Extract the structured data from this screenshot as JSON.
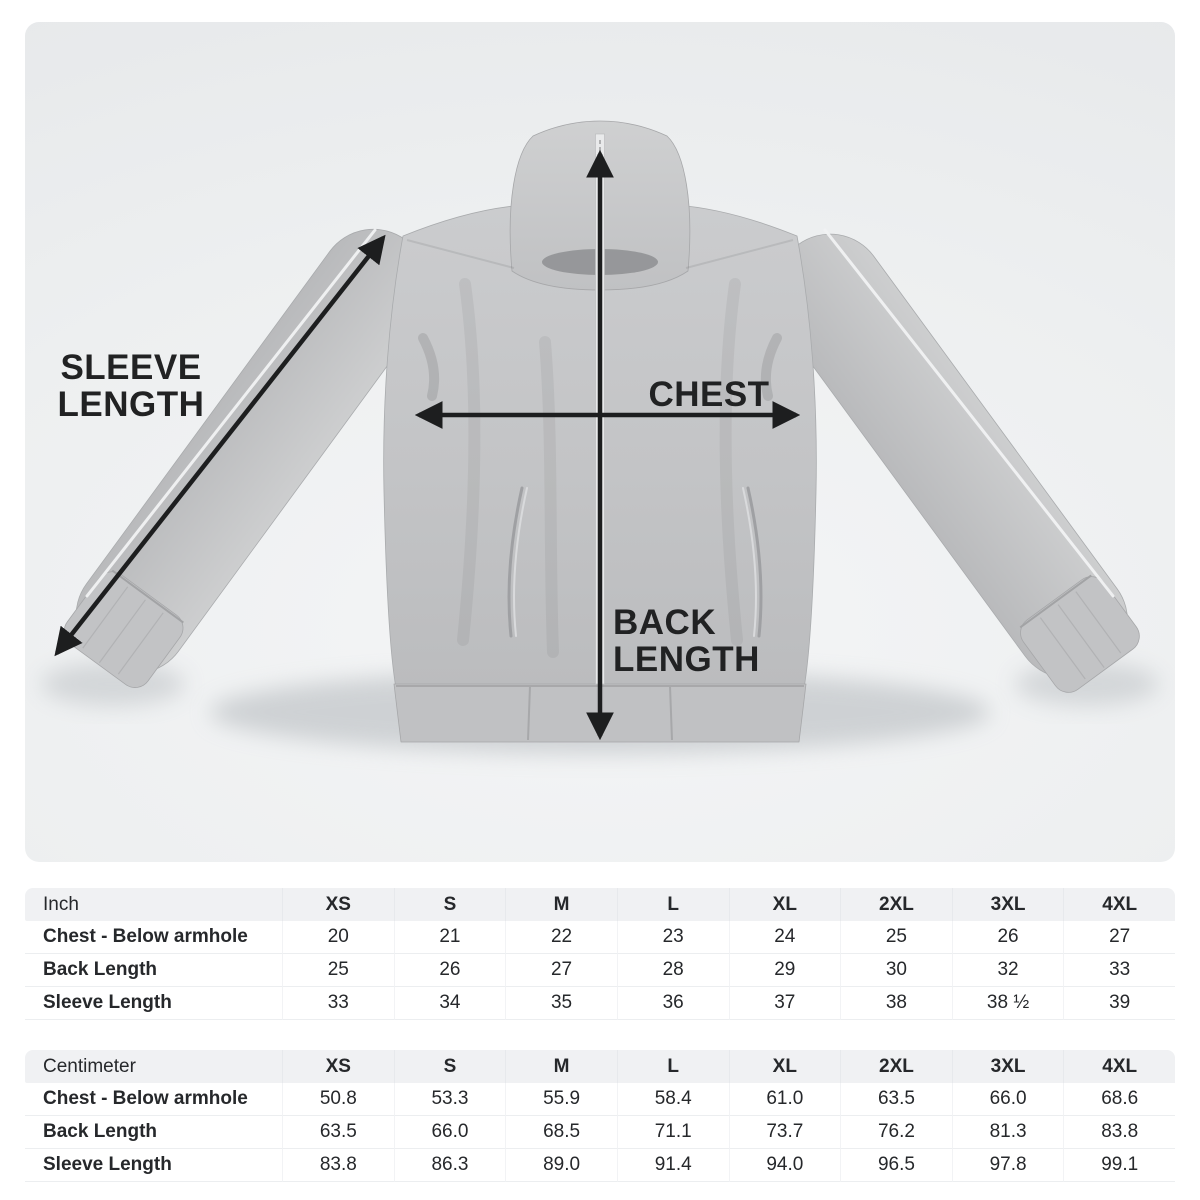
{
  "diagram": {
    "labels": {
      "sleeve_line1": "SLEEVE",
      "sleeve_line2": "LENGTH",
      "chest": "CHEST",
      "back_line1": "BACK",
      "back_line2": "LENGTH"
    }
  },
  "tables": [
    {
      "unit_label": "Inch",
      "sizes": [
        "XS",
        "S",
        "M",
        "L",
        "XL",
        "2XL",
        "3XL",
        "4XL"
      ],
      "rows": [
        {
          "label": "Chest - Below armhole",
          "values": [
            "20",
            "21",
            "22",
            "23",
            "24",
            "25",
            "26",
            "27"
          ]
        },
        {
          "label": "Back Length",
          "values": [
            "25",
            "26",
            "27",
            "28",
            "29",
            "30",
            "32",
            "33"
          ]
        },
        {
          "label": "Sleeve Length",
          "values": [
            "33",
            "34",
            "35",
            "36",
            "37",
            "38",
            "38 ½",
            "39"
          ]
        }
      ]
    },
    {
      "unit_label": "Centimeter",
      "sizes": [
        "XS",
        "S",
        "M",
        "L",
        "XL",
        "2XL",
        "3XL",
        "4XL"
      ],
      "rows": [
        {
          "label": "Chest - Below armhole",
          "values": [
            "50.8",
            "53.3",
            "55.9",
            "58.4",
            "61.0",
            "63.5",
            "66.0",
            "68.6"
          ]
        },
        {
          "label": "Back Length",
          "values": [
            "63.5",
            "66.0",
            "68.5",
            "71.1",
            "73.7",
            "76.2",
            "81.3",
            "83.8"
          ]
        },
        {
          "label": "Sleeve Length",
          "values": [
            "83.8",
            "86.3",
            "89.0",
            "91.4",
            "94.0",
            "96.5",
            "97.8",
            "99.1"
          ]
        }
      ]
    }
  ],
  "colors": {
    "photo_bg": "#edeff0",
    "jacket_gray": "#c5c6c8",
    "arrow": "#1d1e1f",
    "label_text": "#212223",
    "table_text": "#26282b",
    "header_bg": "#f0f1f3",
    "row_border": "#eceef0"
  }
}
